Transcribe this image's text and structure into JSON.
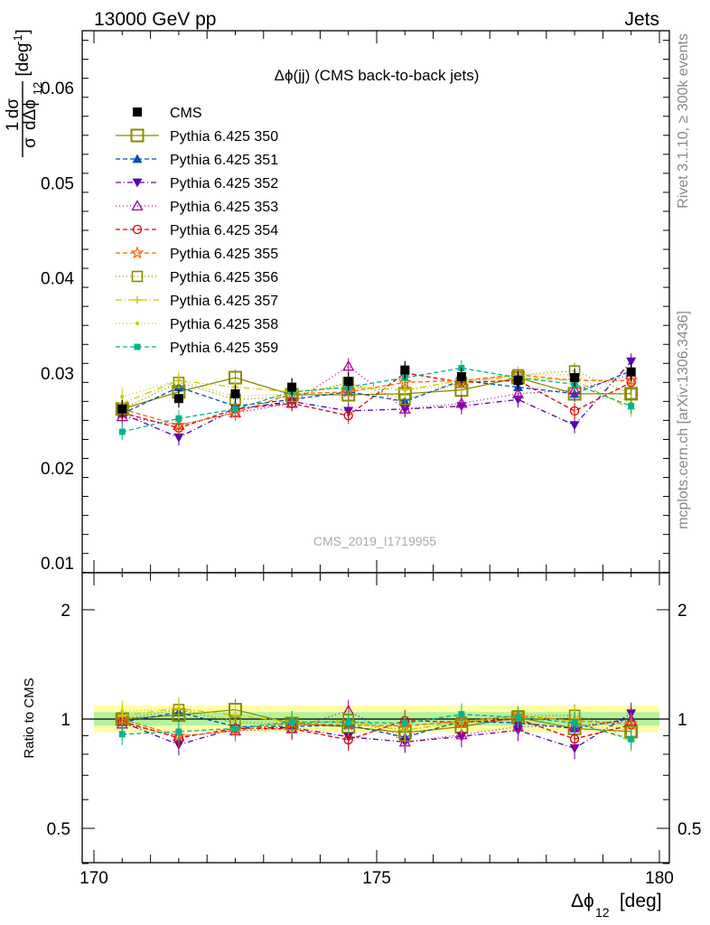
{
  "header": {
    "left": "13000 GeV pp",
    "right": "Jets"
  },
  "side": {
    "rivet": "Rivet 3.1.10, ≥ 300k events",
    "mcplots": "mcplots.cern.ch [arXiv:1306.3436]"
  },
  "chart_data": {
    "type": "scatter",
    "title": "Δϕ(jj) (CMS back-to-back jets)",
    "analysis_label": "CMS_2019_I1719955",
    "xlabel": "Δϕ",
    "xlabel_sub": "12",
    "xlabel_unit": " [deg]",
    "ylabel_frac_num": "1",
    "ylabel_frac_num2": "dσ",
    "ylabel_frac_den": "σ",
    "ylabel_frac_den2": "dΔϕ",
    "ylabel_frac_den_sub": "12",
    "ylabel_unit": "[deg",
    "ylabel_unit_sup": "-1",
    "ylabel_unit_end": "]",
    "ratio_ylabel": "Ratio to CMS",
    "xlim": [
      170,
      180
    ],
    "ylim": [
      0.009,
      0.066
    ],
    "ratio_ylim": [
      0.36,
      2.3
    ],
    "x_ticks": [
      "170",
      "175",
      "180"
    ],
    "y_ticks": [
      "0.01",
      "0.02",
      "0.03",
      "0.04",
      "0.05",
      "0.06"
    ],
    "ratio_ticks": [
      "0.5",
      "1",
      "2"
    ],
    "legend_position": "top-left",
    "x": [
      170.5,
      171.5,
      172.5,
      173.5,
      174.5,
      175.5,
      176.5,
      177.5,
      178.5,
      179.5
    ],
    "data": {
      "name": "CMS",
      "color": "#000000",
      "values": [
        0.0262,
        0.0273,
        0.0278,
        0.0285,
        0.0291,
        0.0303,
        0.0296,
        0.0292,
        0.0295,
        0.0301
      ]
    },
    "series": [
      {
        "name": "Pythia 6.425 350",
        "color": "#8b8b00",
        "marker": "square-open-large",
        "dash": "",
        "values": [
          0.0262,
          0.028,
          0.0295,
          0.0277,
          0.0277,
          0.0278,
          0.0282,
          0.0295,
          0.0278,
          0.0278
        ]
      },
      {
        "name": "Pythia 6.425 351",
        "color": "#0050b4",
        "marker": "triangle-up",
        "dash": "5,3",
        "values": [
          0.0257,
          0.0285,
          0.0265,
          0.0272,
          0.028,
          0.027,
          0.0292,
          0.0285,
          0.0278,
          0.0302
        ]
      },
      {
        "name": "Pythia 6.425 352",
        "color": "#5a00b4",
        "marker": "triangle-down",
        "dash": "6,3,1,3",
        "values": [
          0.0257,
          0.0232,
          0.0262,
          0.027,
          0.026,
          0.0262,
          0.0265,
          0.0272,
          0.0245,
          0.0312
        ]
      },
      {
        "name": "Pythia 6.425 353",
        "color": "#b4009a",
        "marker": "triangle-open",
        "dash": "1,3",
        "values": [
          0.0254,
          0.0245,
          0.0258,
          0.0268,
          0.0307,
          0.0262,
          0.0268,
          0.0278,
          0.0282,
          0.0298
        ]
      },
      {
        "name": "Pythia 6.425 354",
        "color": "#e00000",
        "marker": "circle-open",
        "dash": "5,3",
        "values": [
          0.0258,
          0.0242,
          0.0262,
          0.0268,
          0.0255,
          0.03,
          0.029,
          0.0292,
          0.026,
          0.029
        ]
      },
      {
        "name": "Pythia 6.425 355",
        "color": "#ff6400",
        "marker": "star-open",
        "dash": "5,3",
        "values": [
          0.0262,
          0.0245,
          0.0258,
          0.0278,
          0.028,
          0.029,
          0.0292,
          0.0298,
          0.0292,
          0.0292
        ]
      },
      {
        "name": "Pythia 6.425 356",
        "color": "#8b8b00",
        "marker": "square-open",
        "dash": "1,3",
        "values": [
          0.0262,
          0.029,
          0.0272,
          0.0275,
          0.029,
          0.0272,
          0.029,
          0.0298,
          0.0302,
          0.0278
        ]
      },
      {
        "name": "Pythia 6.425 357",
        "color": "#d2c800",
        "marker": "plus",
        "dash": "7,3,1,3",
        "values": [
          0.0268,
          0.0292,
          0.0285,
          0.028,
          0.0285,
          0.0282,
          0.0292,
          0.0295,
          0.0292,
          0.0262
        ]
      },
      {
        "name": "Pythia 6.425 358",
        "color": "#c8c800",
        "marker": "dot",
        "dash": "1,3",
        "values": [
          0.0275,
          0.0292,
          0.0275,
          0.0278,
          0.0288,
          0.0282,
          0.0288,
          0.0298,
          0.0298,
          0.0268
        ]
      },
      {
        "name": "Pythia 6.425 359",
        "color": "#00b48c",
        "marker": "square-filled",
        "dash": "5,3",
        "values": [
          0.0238,
          0.0252,
          0.0262,
          0.028,
          0.0285,
          0.0295,
          0.0305,
          0.0295,
          0.0288,
          0.0265
        ]
      }
    ]
  }
}
